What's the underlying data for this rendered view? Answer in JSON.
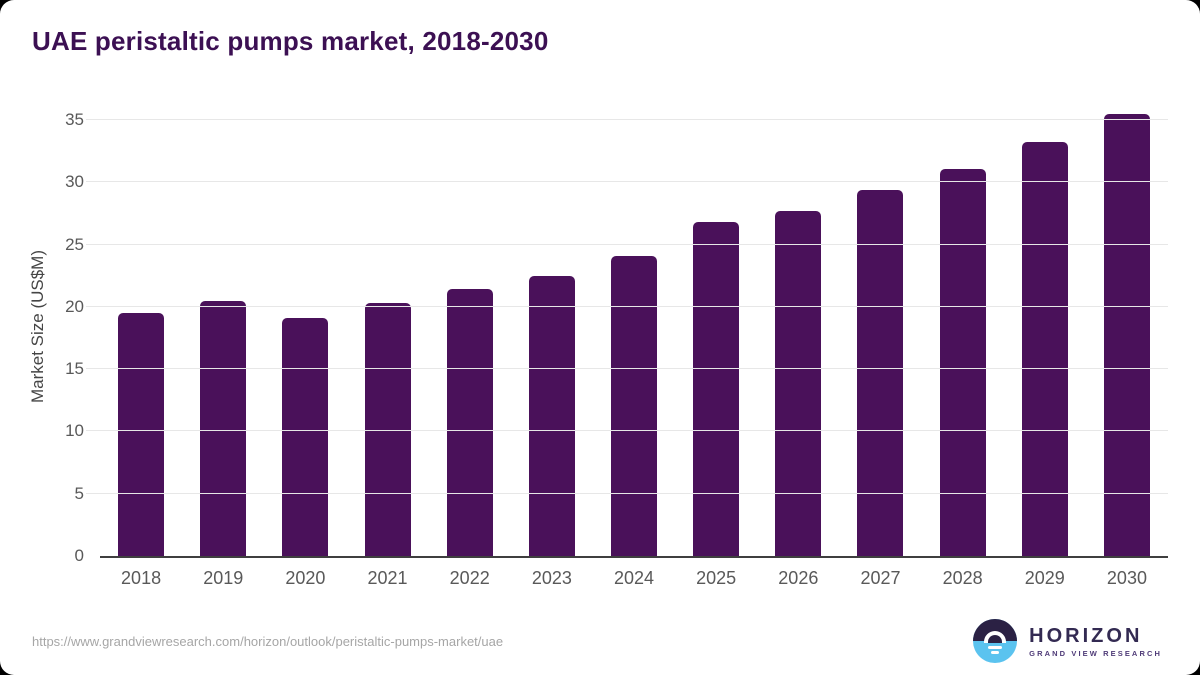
{
  "page": {
    "title": "UAE peristaltic pumps market, 2018-2030",
    "source_url": "https://www.grandviewresearch.com/horizon/outlook/peristaltic-pumps-market/uae"
  },
  "logo": {
    "name": "HORIZON",
    "subtitle": "GRAND VIEW RESEARCH"
  },
  "colors": {
    "bar": "#4A115A",
    "title": "#3C1053",
    "tick_label": "#595959",
    "gridline": "#E7E7E7",
    "axis_line": "#3F3F3F",
    "url_text": "#A6A6A6",
    "logo_dark": "#2B2144",
    "logo_blue": "#5BC3EF",
    "logo_text": "#332A52"
  },
  "chart_data": {
    "type": "bar",
    "title": "UAE peristaltic pumps market, 2018-2030",
    "categories": [
      "2018",
      "2019",
      "2020",
      "2021",
      "2022",
      "2023",
      "2024",
      "2025",
      "2026",
      "2027",
      "2028",
      "2029",
      "2030"
    ],
    "values": [
      19.5,
      20.5,
      19.1,
      20.3,
      21.4,
      22.5,
      24.1,
      26.8,
      27.7,
      29.4,
      31.1,
      33.2,
      35.5
    ],
    "xlabel": "",
    "ylabel": "Market Size (US$M)",
    "ylim": [
      0,
      37
    ],
    "yticks": [
      0,
      5,
      10,
      15,
      20,
      25,
      30,
      35
    ],
    "grid": true,
    "legend": false,
    "bar_color": "#4A115A"
  }
}
